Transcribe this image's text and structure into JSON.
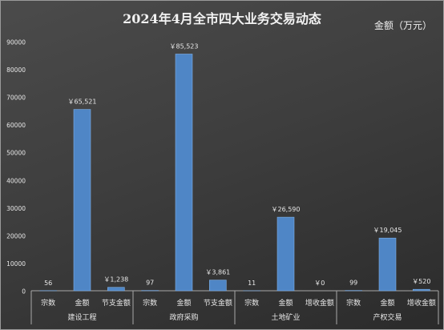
{
  "chart_data": {
    "type": "bar",
    "title": "2024年4月全市四大业务交易动态",
    "unit_label": "金额（万元）",
    "ylim": [
      0,
      90000
    ],
    "yticks": [
      0,
      10000,
      20000,
      30000,
      40000,
      50000,
      60000,
      70000,
      80000,
      90000
    ],
    "grid": false,
    "legend": "none",
    "bar_color": "#4f86c6",
    "groups": [
      {
        "name": "建设工程",
        "items": [
          {
            "label": "宗数",
            "value": 56,
            "data_label": "56"
          },
          {
            "label": "金额",
            "value": 65521,
            "data_label": "￥65,521"
          },
          {
            "label": "节支金额",
            "value": 1238,
            "data_label": "￥1,238"
          }
        ]
      },
      {
        "name": "政府采购",
        "items": [
          {
            "label": "宗数",
            "value": 97,
            "data_label": "97"
          },
          {
            "label": "金额",
            "value": 85523,
            "data_label": "￥85,523"
          },
          {
            "label": "节支金额",
            "value": 3861,
            "data_label": "￥3,861"
          }
        ]
      },
      {
        "name": "土地矿业",
        "items": [
          {
            "label": "宗数",
            "value": 11,
            "data_label": "11"
          },
          {
            "label": "金额",
            "value": 26590,
            "data_label": "￥26,590"
          },
          {
            "label": "增收金额",
            "value": 0,
            "data_label": "￥0"
          }
        ]
      },
      {
        "name": "产权交易",
        "items": [
          {
            "label": "宗数",
            "value": 99,
            "data_label": "99"
          },
          {
            "label": "金额",
            "value": 19045,
            "data_label": "￥19,045"
          },
          {
            "label": "增收金额",
            "value": 520,
            "data_label": "￥520"
          }
        ]
      }
    ]
  }
}
